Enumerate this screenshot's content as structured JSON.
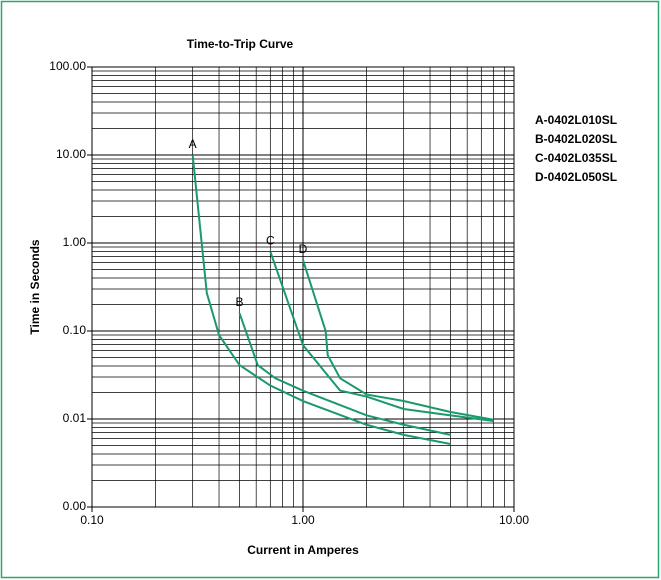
{
  "chart_data": {
    "type": "line",
    "title": "Time-to-Trip Curve",
    "xlabel": "Current in Amperes",
    "ylabel": "Time in Seconds",
    "log_x": true,
    "log_y": true,
    "grid": true,
    "minor_grid": true,
    "legend": "right",
    "xlim": [
      0.1,
      10
    ],
    "ylim": [
      0.001,
      100
    ],
    "xticks": [
      {
        "value": 0.1,
        "label": "0.10"
      },
      {
        "value": 1,
        "label": "1.00"
      },
      {
        "value": 10,
        "label": "10.00"
      }
    ],
    "yticks": [
      {
        "value": 0.001,
        "label": "0.00"
      },
      {
        "value": 0.01,
        "label": "0.01"
      },
      {
        "value": 0.1,
        "label": "0.10"
      },
      {
        "value": 1,
        "label": "1.00"
      },
      {
        "value": 10,
        "label": "10.00"
      },
      {
        "value": 100,
        "label": "100.00"
      }
    ],
    "series": [
      {
        "name": "A-0402L010SL",
        "label": "A",
        "color": "#1a9a6a",
        "x": [
          0.3,
          0.35,
          0.4,
          0.5,
          0.7,
          1,
          2,
          3,
          5
        ],
        "y": [
          10,
          0.27,
          0.09,
          0.041,
          0.024,
          0.016,
          0.0086,
          0.0066,
          0.0052
        ]
      },
      {
        "name": "B-0402L020SL",
        "label": "B",
        "color": "#1a9a6a",
        "x": [
          0.5,
          0.61,
          0.74,
          1,
          2,
          3,
          5
        ],
        "y": [
          0.16,
          0.041,
          0.029,
          0.021,
          0.011,
          0.0086,
          0.0066
        ]
      },
      {
        "name": "C-0402L035SL",
        "label": "C",
        "color": "#1a9a6a",
        "x": [
          0.7,
          1,
          1.5,
          2,
          3,
          5,
          8
        ],
        "y": [
          0.8,
          0.069,
          0.021,
          0.018,
          0.013,
          0.011,
          0.0095
        ]
      },
      {
        "name": "D-0402L050SL",
        "label": "D",
        "color": "#1a9a6a",
        "x": [
          1,
          1.28,
          1.31,
          1.5,
          2,
          3,
          5,
          8
        ],
        "y": [
          0.64,
          0.1,
          0.053,
          0.029,
          0.019,
          0.016,
          0.012,
          0.0098
        ]
      }
    ]
  }
}
